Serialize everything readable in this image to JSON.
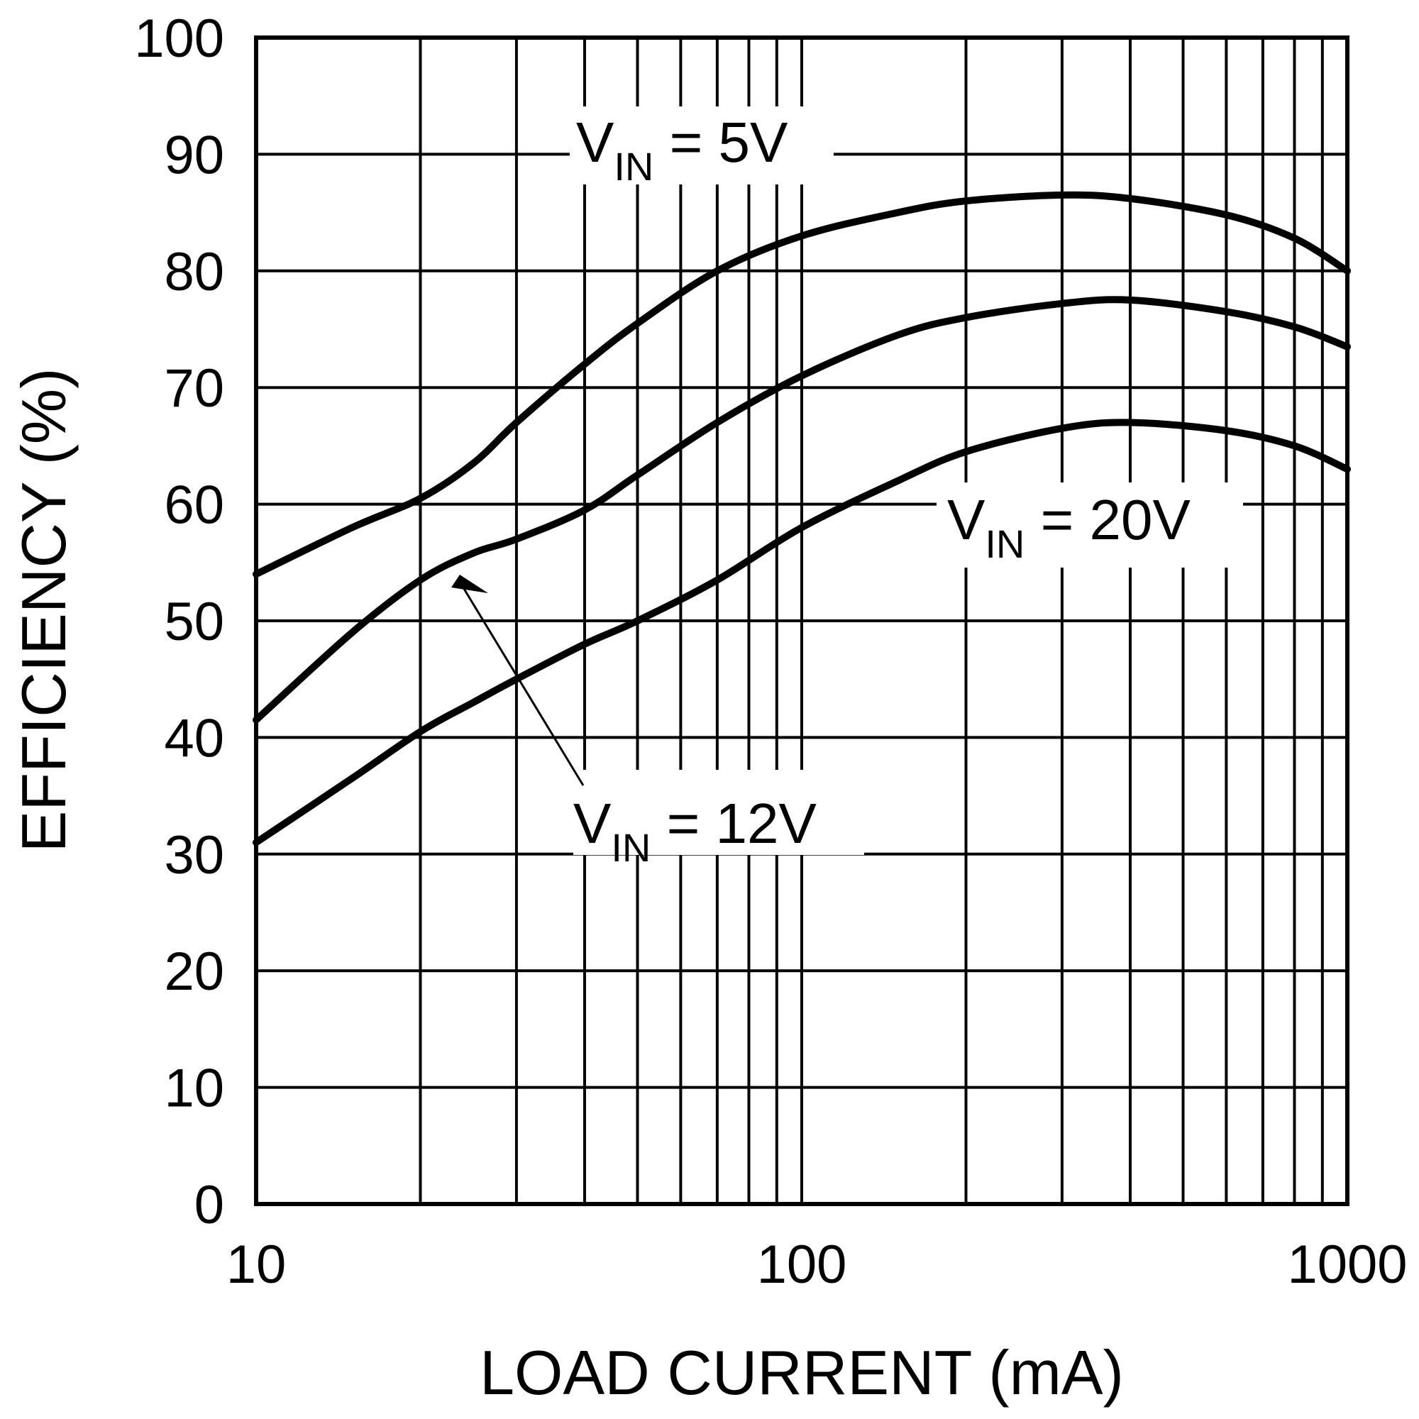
{
  "chart_data": {
    "type": "line",
    "xlabel": "LOAD CURRENT (mA)",
    "ylabel": "EFFICIENCY (%)",
    "xscale": "log",
    "xlim": [
      10,
      1000
    ],
    "ylim": [
      0,
      100
    ],
    "grid": true,
    "x_ticks": [
      "10",
      "100",
      "1000"
    ],
    "y_ticks": [
      "0",
      "10",
      "20",
      "30",
      "40",
      "50",
      "60",
      "70",
      "80",
      "90",
      "100"
    ],
    "series": [
      {
        "name": "VIN = 5V",
        "x": [
          10,
          15,
          20,
          25,
          30,
          40,
          50,
          70,
          100,
          150,
          200,
          300,
          400,
          600,
          800,
          1000
        ],
        "y": [
          54,
          58,
          60.5,
          63.5,
          67,
          72,
          75.5,
          80,
          83,
          85,
          86,
          86.5,
          86.2,
          84.8,
          82.8,
          80
        ]
      },
      {
        "name": "VIN = 12V",
        "x": [
          10,
          15,
          20,
          25,
          30,
          40,
          50,
          70,
          100,
          150,
          200,
          300,
          400,
          600,
          800,
          1000
        ],
        "y": [
          41.5,
          49,
          53.5,
          55.8,
          57,
          59.5,
          62.5,
          67,
          71,
          74.5,
          76,
          77.2,
          77.5,
          76.5,
          75.2,
          73.5
        ]
      },
      {
        "name": "VIN = 20V",
        "x": [
          10,
          15,
          20,
          25,
          30,
          40,
          50,
          70,
          100,
          150,
          200,
          300,
          400,
          600,
          800,
          1000
        ],
        "y": [
          31,
          36.5,
          40.5,
          43,
          45,
          48,
          50,
          53.5,
          58,
          62,
          64.5,
          66.5,
          67,
          66.3,
          65,
          63
        ]
      }
    ],
    "annotations": [
      {
        "main": "V",
        "sub": "IN",
        "rest": " = 5V"
      },
      {
        "main": "V",
        "sub": "IN",
        "rest": " = 12V"
      },
      {
        "main": "V",
        "sub": "IN",
        "rest": " = 20V"
      }
    ]
  }
}
